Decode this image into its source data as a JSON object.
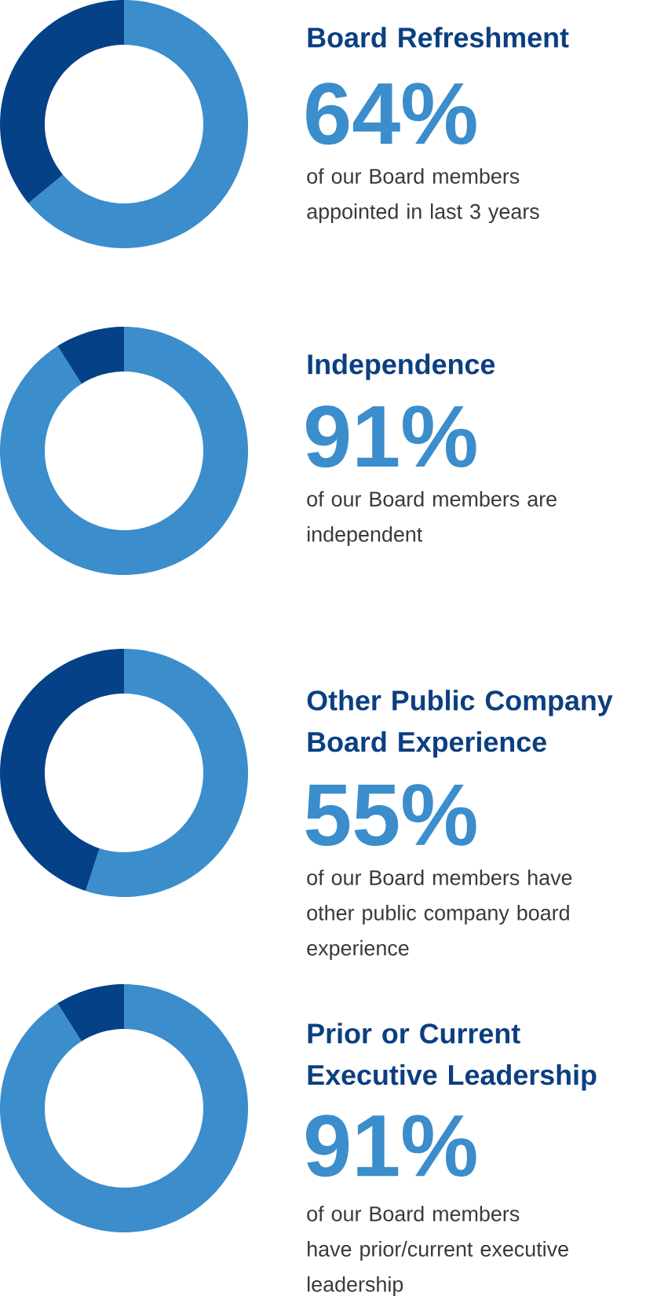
{
  "chart_data": [
    {
      "type": "donut",
      "title": "Board Refreshment",
      "categories": [
        null,
        null
      ],
      "values": [
        64,
        36
      ],
      "colors": [
        "#3b8dcc",
        "#044187"
      ],
      "value_labels": [
        "64%",
        null
      ],
      "annotations": [
        "of our Board members appointed in last 3 years"
      ]
    },
    {
      "type": "donut",
      "title": "Independence",
      "categories": [
        null,
        null
      ],
      "values": [
        91,
        9
      ],
      "colors": [
        "#3b8dcc",
        "#044187"
      ],
      "value_labels": [
        "91%",
        null
      ],
      "annotations": [
        "of our Board members are independent"
      ]
    },
    {
      "type": "donut",
      "title": "Other Public Company Board Experience",
      "categories": [
        null,
        null
      ],
      "values": [
        55,
        45
      ],
      "colors": [
        "#3b8dcc",
        "#044187"
      ],
      "value_labels": [
        "55%",
        null
      ],
      "annotations": [
        "of our Board members have other public company board experience"
      ]
    },
    {
      "type": "donut",
      "title": "Prior or Current Executive Leadership",
      "categories": [
        null,
        null
      ],
      "values": [
        91,
        9
      ],
      "colors": [
        "#3b8dcc",
        "#044187"
      ],
      "value_labels": [
        "91%",
        null
      ],
      "annotations": [
        "of our Board members have prior/current executive leadership"
      ]
    }
  ]
}
